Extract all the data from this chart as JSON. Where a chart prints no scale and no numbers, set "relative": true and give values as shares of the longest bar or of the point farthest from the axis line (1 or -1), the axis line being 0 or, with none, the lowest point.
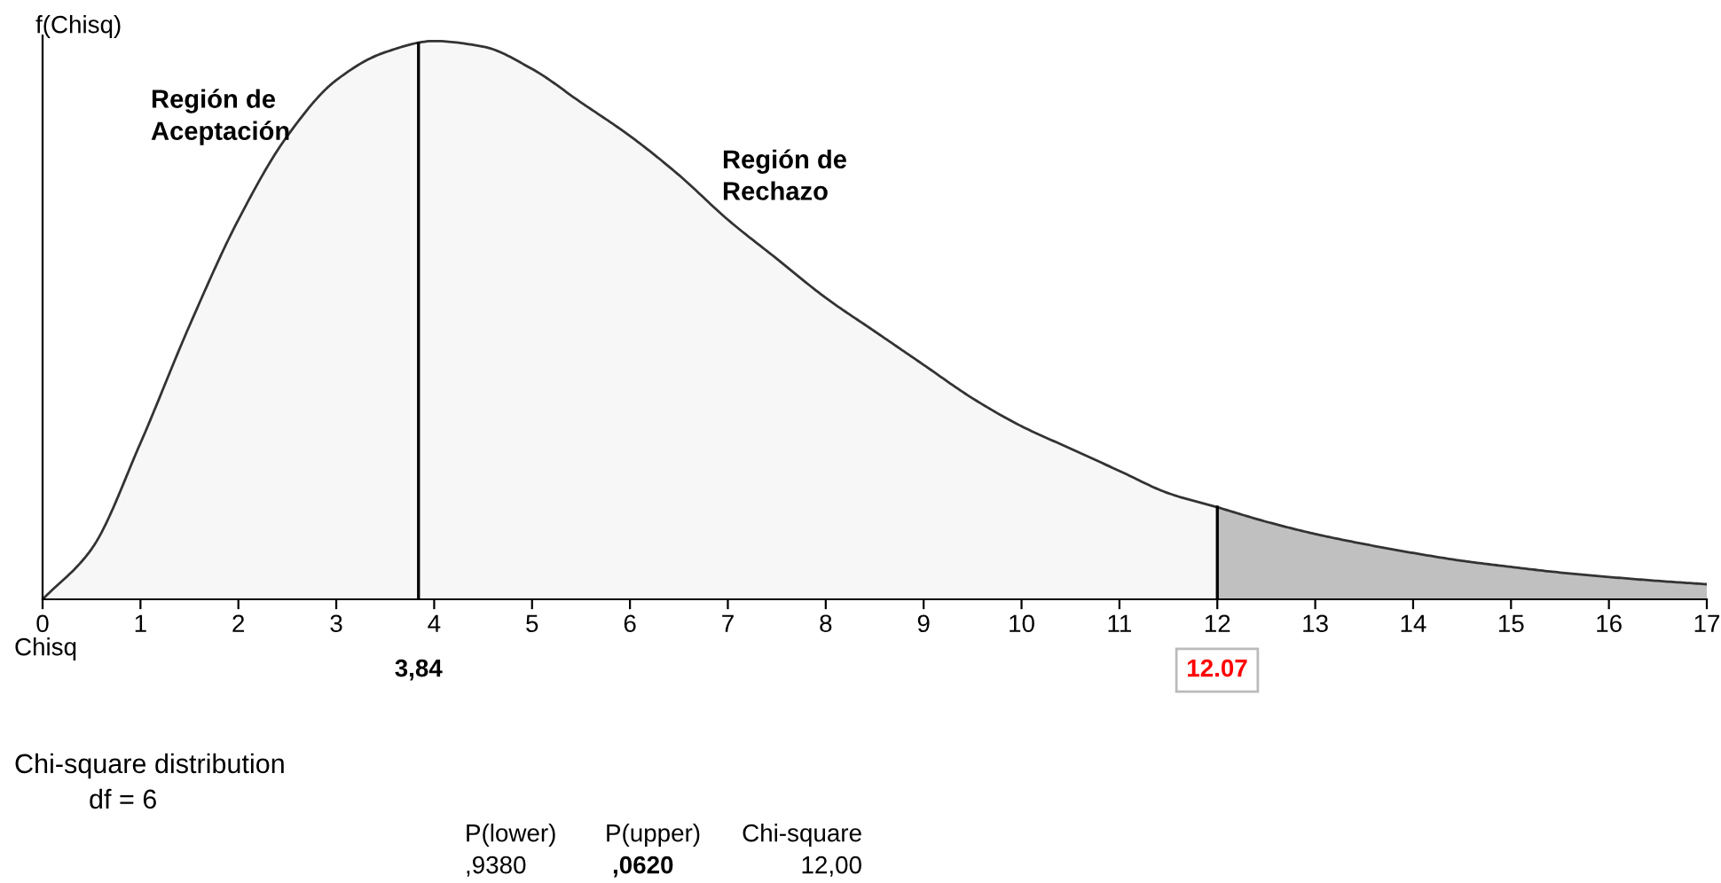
{
  "chart_data": {
    "type": "area",
    "title": "Chi-square distribution",
    "subtitle": "df = 6",
    "xlabel": "Chisq",
    "ylabel": "f(Chisq)",
    "relative": true,
    "series": [
      {
        "color": "#f7f7f7",
        "x": [
          0,
          0.5,
          1,
          1.5,
          2,
          2.5,
          3,
          3.5,
          4,
          4.5,
          5,
          5.5,
          6,
          6.5,
          7,
          7.5,
          8,
          8.5,
          9,
          9.5,
          10,
          10.5,
          11,
          11.5,
          12
        ],
        "values": [
          0,
          0.09,
          0.28,
          0.49,
          0.68,
          0.83,
          0.93,
          0.98,
          1,
          0.99,
          0.95,
          0.89,
          0.83,
          0.76,
          0.68,
          0.61,
          0.54,
          0.48,
          0.42,
          0.36,
          0.31,
          0.27,
          0.23,
          0.19,
          0.165
        ]
      },
      {
        "color": "#c0c0c0",
        "x": [
          12,
          12.5,
          13,
          13.5,
          14,
          14.5,
          15,
          15.5,
          16,
          16.5,
          17
        ],
        "values": [
          0.165,
          0.139,
          0.117,
          0.099,
          0.083,
          0.069,
          0.058,
          0.048,
          0.04,
          0.033,
          0.027
        ]
      }
    ],
    "xlim": [
      0,
      17
    ],
    "xticks": [
      0,
      1,
      2,
      3,
      4,
      5,
      6,
      7,
      8,
      9,
      10,
      11,
      12,
      13,
      14,
      15,
      16,
      17
    ],
    "ref_lines": [
      {
        "axis": "x",
        "value": 3.84,
        "label": "3,84",
        "color": "#000000"
      },
      {
        "axis": "x",
        "value": 12,
        "color": "#000000"
      }
    ],
    "annotations": [
      "12.07",
      "Región de\nAceptación",
      "Región de\nRechazo",
      "P(lower)",
      ",9380",
      "P(upper)",
      ",0620",
      "Chi-square",
      "12,00"
    ],
    "grid": false,
    "legend": false
  }
}
